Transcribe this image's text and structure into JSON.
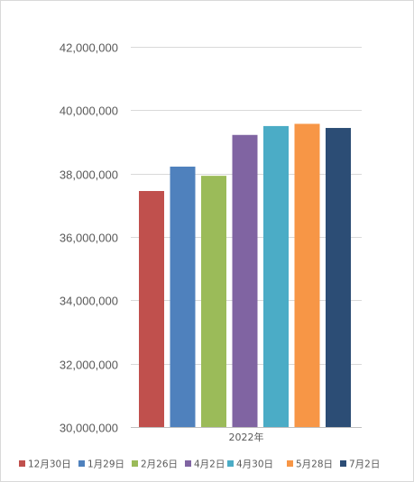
{
  "chart_data": {
    "type": "bar",
    "categories": [
      "2022年"
    ],
    "series": [
      {
        "name": "12月30日",
        "values": [
          37450000
        ],
        "color": "#c0504d"
      },
      {
        "name": "1月29日",
        "values": [
          38220000
        ],
        "color": "#4f81bd"
      },
      {
        "name": "2月26日",
        "values": [
          37930000
        ],
        "color": "#9bbb59"
      },
      {
        "name": "4月2日",
        "values": [
          39220000
        ],
        "color": "#8064a2"
      },
      {
        "name": "4月30日",
        "values": [
          39500000
        ],
        "color": "#4bacc6"
      },
      {
        "name": "5月28日",
        "values": [
          39570000
        ],
        "color": "#f79646"
      },
      {
        "name": "7月2日",
        "values": [
          39440000
        ],
        "color": "#2c4d75"
      }
    ],
    "title": "",
    "xlabel": "",
    "ylabel": "",
    "ylim": [
      30000000,
      42000000
    ],
    "yticks": [
      30000000,
      32000000,
      34000000,
      36000000,
      38000000,
      40000000,
      42000000
    ],
    "ytick_labels": [
      "30,000,000",
      "32,000,000",
      "34,000,000",
      "36,000,000",
      "38,000,000",
      "40,000,000",
      "42,000,000"
    ],
    "grid": true,
    "legend_position": "bottom"
  }
}
